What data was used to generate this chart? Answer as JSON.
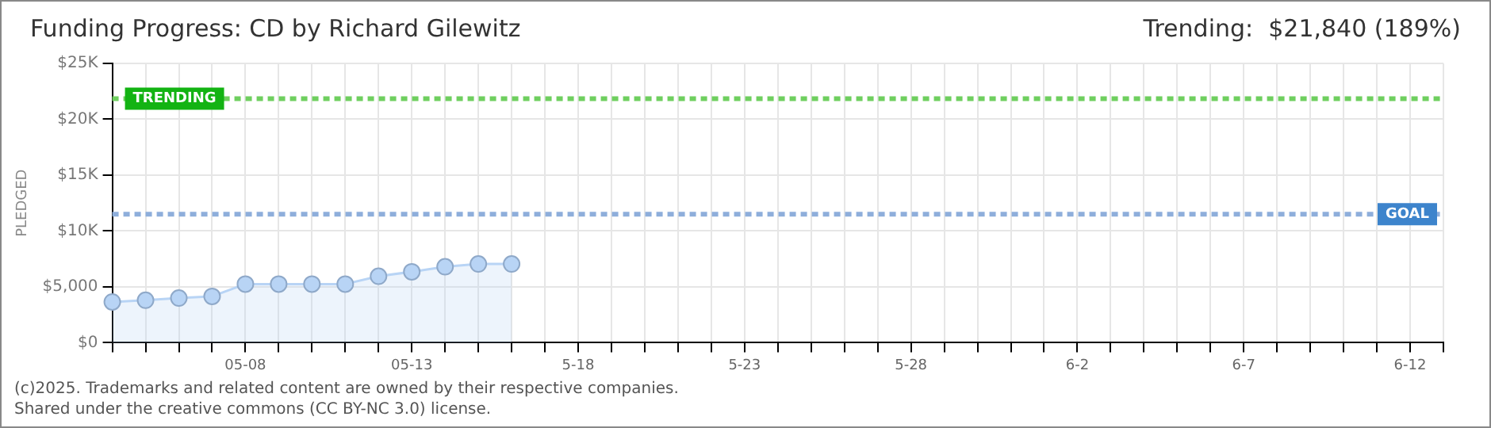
{
  "chart_data": {
    "type": "area",
    "title": "Funding Progress: CD by Richard Gilewitz",
    "subtitle": "Trending:  $21,840 (189%)",
    "ylabel": "PLEDGED",
    "categories": [
      null,
      null,
      null,
      null,
      "05-08",
      null,
      null,
      null,
      null,
      "05-13",
      null,
      null,
      null,
      null,
      "5-18",
      null,
      null,
      null,
      null,
      "5-23",
      null,
      null,
      null,
      null,
      "5-28",
      null,
      null,
      null,
      null,
      "6-2",
      null,
      null,
      null,
      null,
      "6-7",
      null,
      null,
      null,
      null,
      "6-12",
      null
    ],
    "series": [
      {
        "color": "#b8d4f5",
        "values": [
          3650,
          3800,
          4000,
          4150,
          5250,
          5250,
          5250,
          5250,
          5950,
          6350,
          6800,
          7050,
          7050,
          null,
          null,
          null,
          null,
          null,
          null,
          null,
          null,
          null,
          null,
          null,
          null,
          null,
          null,
          null,
          null,
          null,
          null,
          null,
          null,
          null,
          null,
          null,
          null,
          null,
          null,
          null,
          null
        ]
      }
    ],
    "ylim": [
      0,
      25000
    ],
    "yticks": [
      {
        "value": 0,
        "label": "$0"
      },
      {
        "value": 5000,
        "label": "$5,000"
      },
      {
        "value": 10000,
        "label": "$10K"
      },
      {
        "value": 15000,
        "label": "$15K"
      },
      {
        "value": 20000,
        "label": "$20K"
      },
      {
        "value": 25000,
        "label": "$25K"
      }
    ],
    "grid": true,
    "marker": "circle",
    "line_style": "solid",
    "ref_lines": [
      {
        "axis": "y",
        "value": 11500,
        "label": "GOAL",
        "color": "#8eaedb",
        "line_style": "dashed"
      },
      {
        "axis": "y",
        "value": 21840,
        "label": "TRENDING",
        "color": "#6fcf5f",
        "line_style": "dashed"
      }
    ],
    "annotations": [
      "(c)2025. Trademarks and related content are owned by their respective companies.",
      "Shared under the creative commons (CC BY-NC 3.0) license."
    ]
  }
}
